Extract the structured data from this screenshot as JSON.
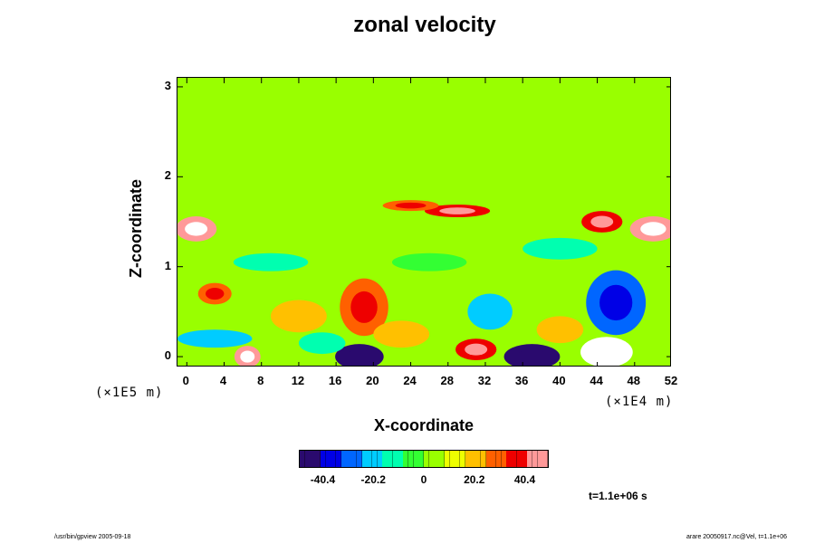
{
  "chart_data": {
    "type": "heatmap",
    "title": "zonal velocity",
    "xlabel": "X-coordinate",
    "ylabel": "Z-coordinate",
    "x_scale_label": "(×1E4 m)",
    "y_scale_label": "(×1E5 m)",
    "xlim": [
      -1,
      52
    ],
    "ylim": [
      -0.12,
      3.1
    ],
    "x_ticks": [
      0,
      4,
      8,
      12,
      16,
      20,
      24,
      28,
      32,
      36,
      40,
      44,
      48,
      52
    ],
    "y_ticks": [
      0,
      1,
      2,
      3
    ],
    "colorbar": {
      "ticks": [
        -40.4,
        -20.2,
        0,
        20.2,
        40.4
      ],
      "range": [
        -50,
        50
      ],
      "colors": [
        "#2a0a6e",
        "#0000e6",
        "#0066ff",
        "#00ccff",
        "#00ffb0",
        "#33ff33",
        "#99ff00",
        "#eeff00",
        "#ffc000",
        "#ff6000",
        "#ee0000",
        "#ff9999"
      ]
    },
    "background_value": 8,
    "features": [
      {
        "x": 18.5,
        "z": 0.0,
        "value": -55,
        "rx": 2.6,
        "rz": 0.14
      },
      {
        "x": 37,
        "z": 0.0,
        "value": -55,
        "rx": 3.0,
        "rz": 0.14
      },
      {
        "x": 6.5,
        "z": 0.0,
        "value": 48,
        "rx": 1.4,
        "rz": 0.12
      },
      {
        "x": 45,
        "z": 0.05,
        "value": 52,
        "rx": 2.8,
        "rz": 0.17
      },
      {
        "x": 3,
        "z": 0.2,
        "value": -20,
        "rx": 4,
        "rz": 0.1
      },
      {
        "x": 14.5,
        "z": 0.15,
        "value": -12,
        "rx": 2.5,
        "rz": 0.12
      },
      {
        "x": 31,
        "z": 0.08,
        "value": 35,
        "rx": 2.2,
        "rz": 0.12
      },
      {
        "x": 19,
        "z": 0.55,
        "value": 28,
        "rx": 2.6,
        "rz": 0.32
      },
      {
        "x": 46,
        "z": 0.6,
        "value": -30,
        "rx": 3.2,
        "rz": 0.36
      },
      {
        "x": 32.5,
        "z": 0.5,
        "value": -22,
        "rx": 2.4,
        "rz": 0.2
      },
      {
        "x": 3,
        "z": 0.7,
        "value": 30,
        "rx": 1.8,
        "rz": 0.12
      },
      {
        "x": 1,
        "z": 1.42,
        "value": 42,
        "rx": 2.2,
        "rz": 0.14
      },
      {
        "x": 50,
        "z": 1.42,
        "value": 45,
        "rx": 2.5,
        "rz": 0.14
      },
      {
        "x": 44.5,
        "z": 1.5,
        "value": 38,
        "rx": 2.2,
        "rz": 0.12
      },
      {
        "x": 29,
        "z": 1.62,
        "value": 36,
        "rx": 3.5,
        "rz": 0.07
      },
      {
        "x": 24,
        "z": 1.68,
        "value": 30,
        "rx": 3.0,
        "rz": 0.06
      },
      {
        "x": 9,
        "z": 1.05,
        "value": -12,
        "rx": 4,
        "rz": 0.1
      },
      {
        "x": 26,
        "z": 1.05,
        "value": -8,
        "rx": 4,
        "rz": 0.1
      },
      {
        "x": 40,
        "z": 1.2,
        "value": -10,
        "rx": 4,
        "rz": 0.12
      },
      {
        "x": 23,
        "z": 0.25,
        "value": 22,
        "rx": 3,
        "rz": 0.15
      },
      {
        "x": 12,
        "z": 0.45,
        "value": 20,
        "rx": 3,
        "rz": 0.18
      },
      {
        "x": 40,
        "z": 0.3,
        "value": 22,
        "rx": 2.5,
        "rz": 0.15
      }
    ]
  },
  "timestamp": "t=1.1e+06 s",
  "footer": {
    "left": "/usr/bin/gpview 2005-09-18",
    "right": "arare 20050917.nc@Vel, t=1.1e+06"
  }
}
